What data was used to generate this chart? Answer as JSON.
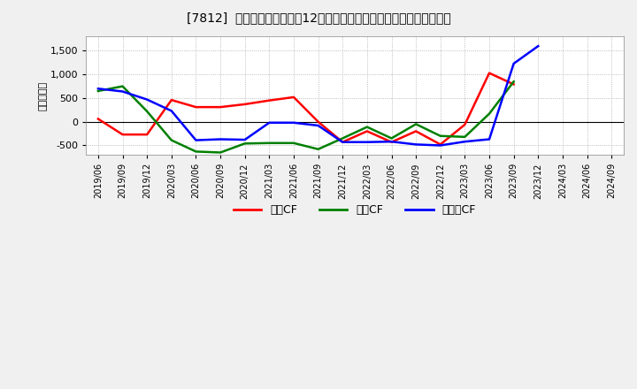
{
  "title": "[7812]  キャッシュフローの12か月移動合計の対前年同期増減額の推移",
  "ylabel": "（百万円）",
  "background_color": "#f0f0f0",
  "plot_background_color": "#ffffff",
  "x_labels": [
    "2019/06",
    "2019/09",
    "2019/12",
    "2020/03",
    "2020/06",
    "2020/09",
    "2020/12",
    "2021/03",
    "2021/06",
    "2021/09",
    "2021/12",
    "2022/03",
    "2022/06",
    "2022/09",
    "2022/12",
    "2023/03",
    "2023/06",
    "2023/09",
    "2023/12",
    "2024/03",
    "2024/06",
    "2024/09"
  ],
  "operating_cf": [
    60,
    -270,
    -270,
    460,
    310,
    310,
    370,
    450,
    520,
    0,
    -430,
    -200,
    -430,
    -200,
    -480,
    -60,
    1030,
    790,
    null,
    null,
    null,
    null
  ],
  "investing_cf": [
    650,
    750,
    220,
    -390,
    -630,
    -650,
    -460,
    -450,
    -450,
    -580,
    -350,
    -110,
    -350,
    -50,
    -300,
    -320,
    170,
    850,
    null,
    null,
    null,
    null
  ],
  "free_cf": [
    700,
    640,
    470,
    230,
    -390,
    -370,
    -380,
    -20,
    -20,
    -80,
    -430,
    -430,
    -420,
    -480,
    -500,
    -420,
    -370,
    1230,
    1600,
    null,
    null,
    null
  ],
  "ylim_min": -700,
  "ylim_max": 1800,
  "yticks": [
    -500,
    0,
    500,
    1000,
    1500
  ],
  "colors": {
    "operating": "#ff0000",
    "investing": "#008000",
    "free": "#0000ff"
  },
  "legend_labels": [
    "営業CF",
    "投資CF",
    "フリーCF"
  ]
}
